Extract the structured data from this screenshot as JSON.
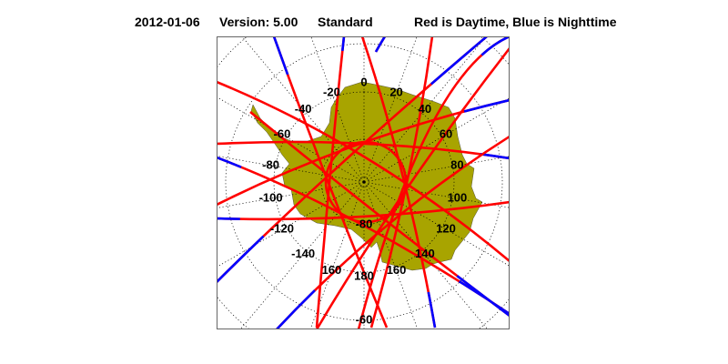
{
  "title": {
    "date": "2012-01-06",
    "version": "Version: 5.00",
    "mode": "Standard",
    "legend": "Red is Daytime, Blue is Nighttime"
  },
  "map": {
    "projection": "south polar stereographic",
    "colors": {
      "land": "#a8a400",
      "day": "#ff0000",
      "night": "#0000ff",
      "grid": "#000000"
    },
    "longitude_labels": [
      "0",
      "20",
      "40",
      "60",
      "80",
      "100",
      "120",
      "140",
      "160",
      "180",
      "160",
      "-140",
      "-120",
      "-100",
      "-80",
      "-60",
      "-40",
      "-20"
    ],
    "latitude_labels": [
      "-80",
      "-60"
    ]
  }
}
